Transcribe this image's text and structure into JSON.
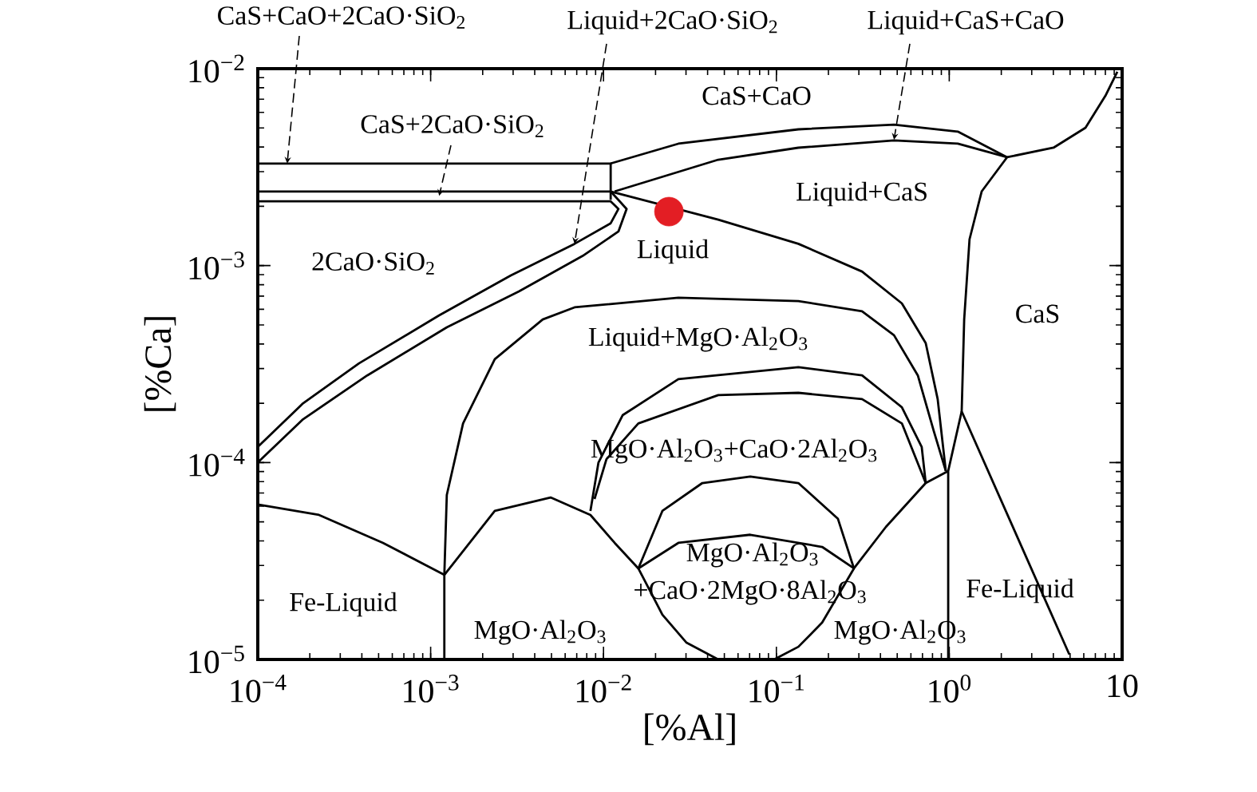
{
  "chart_data": {
    "type": "line",
    "xlabel": "[%Al]",
    "ylabel": "[%Ca]",
    "log": "xy",
    "xlim": [
      0.0001,
      10
    ],
    "ylim": [
      1e-05,
      0.01
    ],
    "xticks": [
      {
        "value": 0.0001,
        "label": "10$^{−4}$"
      },
      {
        "value": 0.001,
        "label": "10$^{−3}$"
      },
      {
        "value": 0.01,
        "label": "10$^{−2}$"
      },
      {
        "value": 0.1,
        "label": "10$^{−1}$"
      },
      {
        "value": 1,
        "label": "10$^{0}$"
      },
      10
    ],
    "yticks": [
      {
        "value": 1e-05,
        "label": "10$^{−5}$"
      },
      {
        "value": 0.0001,
        "label": "10$^{−4}$"
      },
      {
        "value": 0.001,
        "label": "10$^{−3}$"
      },
      {
        "value": 0.01,
        "label": "10$^{−2}$"
      }
    ],
    "series": [
      {
        "color": "#000000",
        "x": [
          0.0001,
          0.011,
          0.011
        ],
        "values": [
          0.0033,
          0.0033,
          0.00216
        ]
      },
      {
        "color": "#000000",
        "x": [
          0.011,
          0.0271,
          0.134,
          0.479,
          1.12,
          2.16
        ],
        "values": [
          0.0033,
          0.00416,
          0.00492,
          0.0052,
          0.00479,
          0.00355
        ]
      },
      {
        "color": "#000000",
        "x": [
          0.0116,
          0.0461,
          0.134,
          0.479,
          1.12,
          2.16
        ],
        "values": [
          0.00238,
          0.00345,
          0.00397,
          0.00432,
          0.00416,
          0.00355
        ]
      },
      {
        "color": "#000000",
        "x": [
          0.0001,
          0.011,
          0.0136,
          0.0122,
          0.00757,
          0.00324,
          0.00124,
          0.00043,
          0.000183,
          0.0001
        ],
        "values": [
          0.00238,
          0.00238,
          0.00194,
          0.00149,
          0.00112,
          0.00074,
          0.000486,
          0.000277,
          0.000166,
          0.0001
        ]
      },
      {
        "color": "#000000",
        "x": [
          0.0001,
          0.011,
          0.0122,
          0.011,
          0.0068,
          0.00291,
          0.00112,
          0.000385,
          0.000183,
          0.0001
        ],
        "values": [
          0.00212,
          0.00212,
          0.00194,
          0.00164,
          0.00129,
          0.000891,
          0.000559,
          0.000319,
          0.0002,
          0.00012
        ]
      },
      {
        "color": "#000000",
        "x": [
          0.011,
          0.0461,
          0.134,
          0.313,
          0.532,
          0.731,
          0.857,
          0.955
        ],
        "values": [
          0.00238,
          0.00171,
          0.00129,
          0.000933,
          0.000643,
          0.000404,
          0.00021,
          9.06e-05
        ]
      },
      {
        "color": "#000000",
        "x": [
          2.16,
          1.54,
          1.31,
          1.22,
          1.18,
          4.95
        ],
        "values": [
          0.00355,
          0.00238,
          0.00136,
          0.000533,
          0.000182,
          1.06e-05
        ]
      },
      {
        "color": "#000000",
        "x": [
          2.16,
          4.01,
          6.14,
          8.0,
          9.38
        ],
        "values": [
          0.00355,
          0.00397,
          0.00501,
          0.00728,
          0.00964
        ]
      },
      {
        "color": "#000000",
        "x": [
          1.18,
          0.986,
          0.986
        ],
        "values": [
          0.000182,
          9.06e-05,
          1e-05
        ]
      },
      {
        "color": "#000000",
        "x": [
          0.0012,
          0.0012,
          0.00124,
          0.00154,
          0.00235,
          0.00445,
          0.0068,
          0.0271,
          0.134,
          0.313,
          0.479,
          0.658,
          0.813,
          0.955
        ],
        "values": [
          1e-05,
          2.69e-05,
          6.84e-05,
          0.000158,
          0.000335,
          0.000533,
          0.000614,
          0.000687,
          0.000661,
          0.000586,
          0.000443,
          0.000277,
          0.000145,
          9.06e-05
        ]
      },
      {
        "color": "#000000",
        "x": [
          0.0084,
          0.00935,
          0.0129,
          0.0271,
          0.134,
          0.313,
          0.532,
          0.693,
          0.731
        ],
        "values": [
          5.68e-05,
          0.0001,
          0.000174,
          0.000265,
          0.000305,
          0.000277,
          0.000191,
          0.00012,
          7.87e-05
        ]
      },
      {
        "color": "#000000",
        "x": [
          0.00887,
          0.0104,
          0.0159,
          0.0461,
          0.134,
          0.313,
          0.532,
          0.731
        ],
        "values": [
          6.53e-05,
          0.000104,
          0.000158,
          0.00022,
          0.000226,
          0.00021,
          0.000158,
          7.87e-05
        ]
      },
      {
        "color": "#000000",
        "x": [
          0.0001,
          0.000226,
          0.00053,
          0.0012,
          0.00235,
          0.00494,
          0.0084,
          0.0116,
          0.0159,
          0.0271,
          0.0706,
          0.184,
          0.281,
          0.43,
          0.731,
          0.986
        ],
        "values": [
          6.12e-05,
          5.42e-05,
          3.91e-05,
          2.69e-05,
          5.68e-05,
          6.65e-05,
          5.42e-05,
          3.91e-05,
          2.9e-05,
          3.91e-05,
          4.3e-05,
          3.73e-05,
          2.9e-05,
          4.71e-05,
          7.87e-05,
          9.06e-05
        ]
      },
      {
        "color": "#000000",
        "x": [
          0.0159,
          0.0219,
          0.0373,
          0.0706,
          0.134,
          0.227,
          0.281
        ],
        "values": [
          2.9e-05,
          5.68e-05,
          7.87e-05,
          8.49e-05,
          7.87e-05,
          5.18e-05,
          2.9e-05
        ]
      },
      {
        "color": "#000000",
        "x": [
          0.0159,
          0.0219,
          0.0301,
          0.0461
        ],
        "values": [
          2.9e-05,
          1.69e-05,
          1.22e-05,
          1e-05
        ]
      },
      {
        "color": "#000000",
        "x": [
          0.281,
          0.184,
          0.134,
          0.097
        ],
        "values": [
          2.9e-05,
          1.54e-05,
          1.16e-05,
          1e-05
        ]
      },
      {
        "type": "scatter",
        "marker": "circle",
        "color": "#e31e24",
        "x": [
          0.0239
        ],
        "values": [
          0.00188
        ]
      }
    ],
    "annotations": [
      {
        "text": "CaS+CaO+2CaO·SiO$_{2}$",
        "x": 0.000148,
        "y": 0.0033
      },
      {
        "text": "Liquid+2CaO·SiO$_{2}$",
        "x": 0.0068,
        "y": 0.00129
      },
      {
        "text": "Liquid+CaS+CaO",
        "x": 0.479,
        "y": 0.00436
      },
      {
        "text": "CaS+2CaO·SiO$_{2}$",
        "x": 0.00112,
        "y": 0.00226
      },
      "CaS+CaO",
      "Liquid+CaS",
      "Liquid",
      "2CaO·SiO$_{2}$",
      "CaS",
      "Liquid+MgO·Al$_{2}$O$_{3}$",
      "MgO·Al$_{2}$O$_{3}$+CaO·2Al$_{2}$O$_{3}$",
      "MgO·Al$_{2}$O$_{3}$",
      "+CaO·2MgO·8Al$_{2}$O$_{3}$",
      "Fe-Liquid",
      "MgO·Al$_{2}$O$_{3}$",
      "Fe-Liquid",
      "MgO·Al$_{2}$O$_{3}$"
    ]
  }
}
